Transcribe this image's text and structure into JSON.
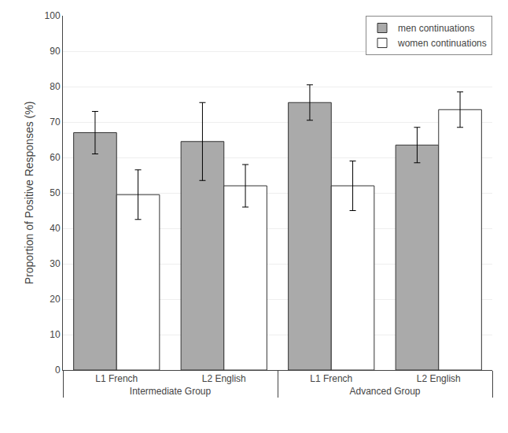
{
  "chart_data": {
    "type": "bar",
    "y_label": "Proportion of Positive Responses (%)",
    "categories": [
      [
        "Intermediate Group",
        "L1 French"
      ],
      [
        "Intermediate Group",
        "L2 English"
      ],
      [
        "Advanced Group",
        "L1 French"
      ],
      [
        "Advanced Group",
        "L2 English"
      ]
    ],
    "series": [
      {
        "name": "men continuations",
        "color": "#AAAAAA",
        "values": [
          67,
          64.5,
          75.5,
          63.5
        ],
        "errors": [
          6,
          11,
          5,
          5
        ]
      },
      {
        "name": "women continuations",
        "color": "#FFFFFF",
        "values": [
          49.5,
          52,
          52,
          73.5
        ],
        "errors": [
          7,
          6,
          7,
          5
        ]
      }
    ],
    "ylim": [
      0,
      100
    ],
    "yticks": [
      0,
      10,
      20,
      30,
      40,
      50,
      60,
      70,
      80,
      90,
      100
    ],
    "grid": true,
    "legend": "upper right"
  }
}
